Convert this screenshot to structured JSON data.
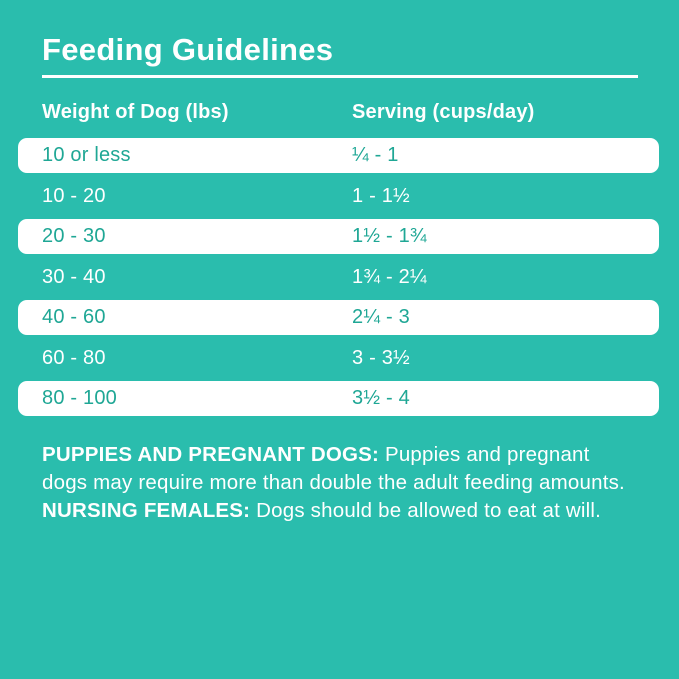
{
  "title": "Feeding Guidelines",
  "table": {
    "headers": [
      "Weight of Dog (lbs)",
      "Serving (cups/day)"
    ],
    "rows": [
      {
        "weight": "10 or less",
        "serving": "¼ - 1"
      },
      {
        "weight": "10 - 20",
        "serving": "1 - 1½"
      },
      {
        "weight": "20 - 30",
        "serving": "1½ - 1¾"
      },
      {
        "weight": "30 - 40",
        "serving": "1¾ - 2¼"
      },
      {
        "weight": "40 - 60",
        "serving": "2¼ - 3"
      },
      {
        "weight": "60 - 80",
        "serving": "3 - 3½"
      },
      {
        "weight": "80 - 100",
        "serving": "3½ - 4"
      }
    ]
  },
  "notes": [
    {
      "label": "PUPPIES AND PREGNANT DOGS:",
      "text": "Puppies and pregnant dogs may require more than double the adult feeding amounts."
    },
    {
      "label": "NURSING FEMALES:",
      "text": "Dogs should be allowed to eat at will."
    }
  ],
  "colors": {
    "background": "#2ABDAD",
    "row_highlight": "#FFFFFF",
    "text_on_white": "#1FA795",
    "text_on_teal": "#FFFFFF"
  }
}
